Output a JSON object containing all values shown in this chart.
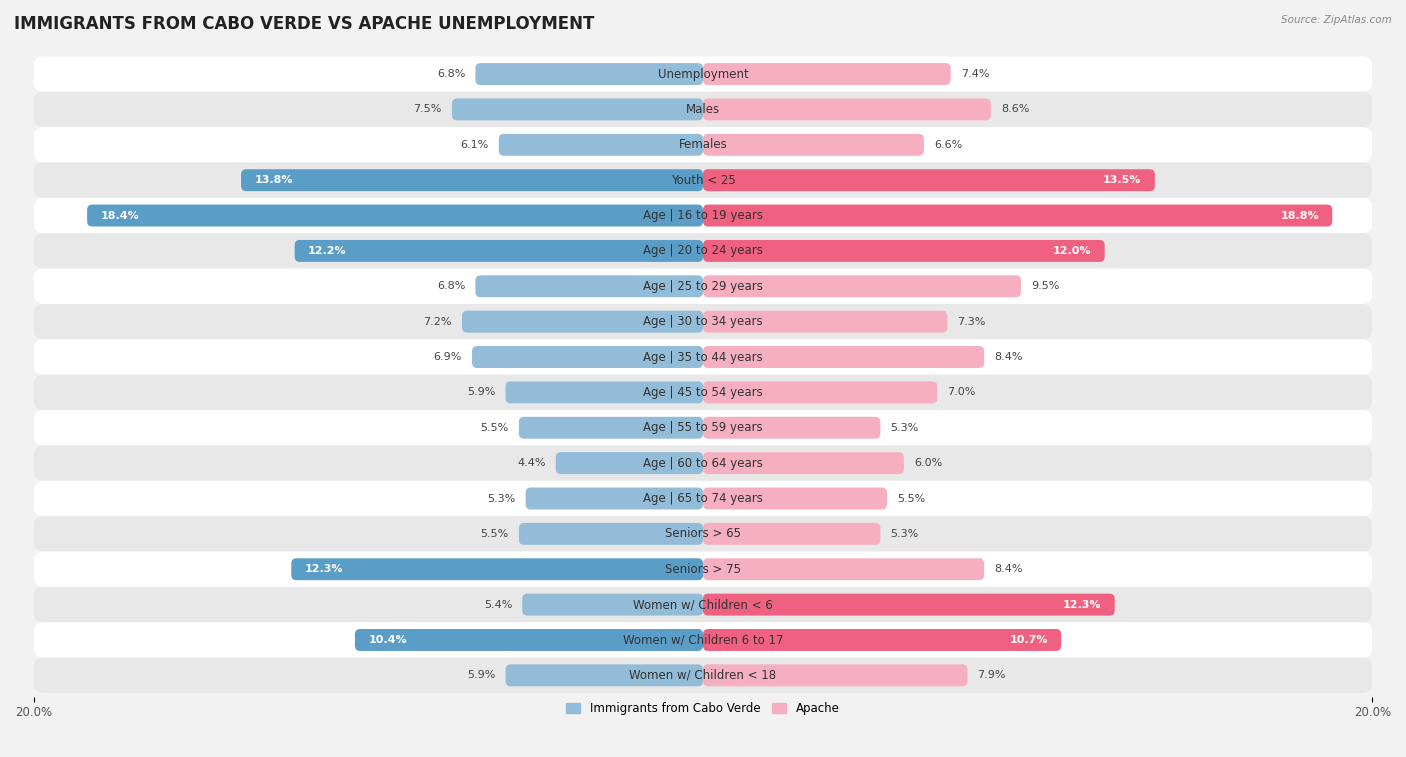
{
  "title": "IMMIGRANTS FROM CABO VERDE VS APACHE UNEMPLOYMENT",
  "source": "Source: ZipAtlas.com",
  "categories": [
    "Unemployment",
    "Males",
    "Females",
    "Youth < 25",
    "Age | 16 to 19 years",
    "Age | 20 to 24 years",
    "Age | 25 to 29 years",
    "Age | 30 to 34 years",
    "Age | 35 to 44 years",
    "Age | 45 to 54 years",
    "Age | 55 to 59 years",
    "Age | 60 to 64 years",
    "Age | 65 to 74 years",
    "Seniors > 65",
    "Seniors > 75",
    "Women w/ Children < 6",
    "Women w/ Children 6 to 17",
    "Women w/ Children < 18"
  ],
  "cabo_verde": [
    6.8,
    7.5,
    6.1,
    13.8,
    18.4,
    12.2,
    6.8,
    7.2,
    6.9,
    5.9,
    5.5,
    4.4,
    5.3,
    5.5,
    12.3,
    5.4,
    10.4,
    5.9
  ],
  "apache": [
    7.4,
    8.6,
    6.6,
    13.5,
    18.8,
    12.0,
    9.5,
    7.3,
    8.4,
    7.0,
    5.3,
    6.0,
    5.5,
    5.3,
    8.4,
    12.3,
    10.7,
    7.9
  ],
  "cabo_verde_color": "#92bcd8",
  "apache_color": "#f5afc0",
  "cabo_verde_highlight_color": "#5a9ec8",
  "apache_highlight_color": "#f06080",
  "highlight_threshold": 10.0,
  "max_val": 20.0,
  "bg_color": "#f2f2f2",
  "row_color_even": "#ffffff",
  "row_color_odd": "#e8e8e8",
  "title_fontsize": 12,
  "label_fontsize": 8.5,
  "value_fontsize": 8.0,
  "axis_fontsize": 8.5,
  "legend_label_cabo": "Immigrants from Cabo Verde",
  "legend_label_apache": "Apache"
}
